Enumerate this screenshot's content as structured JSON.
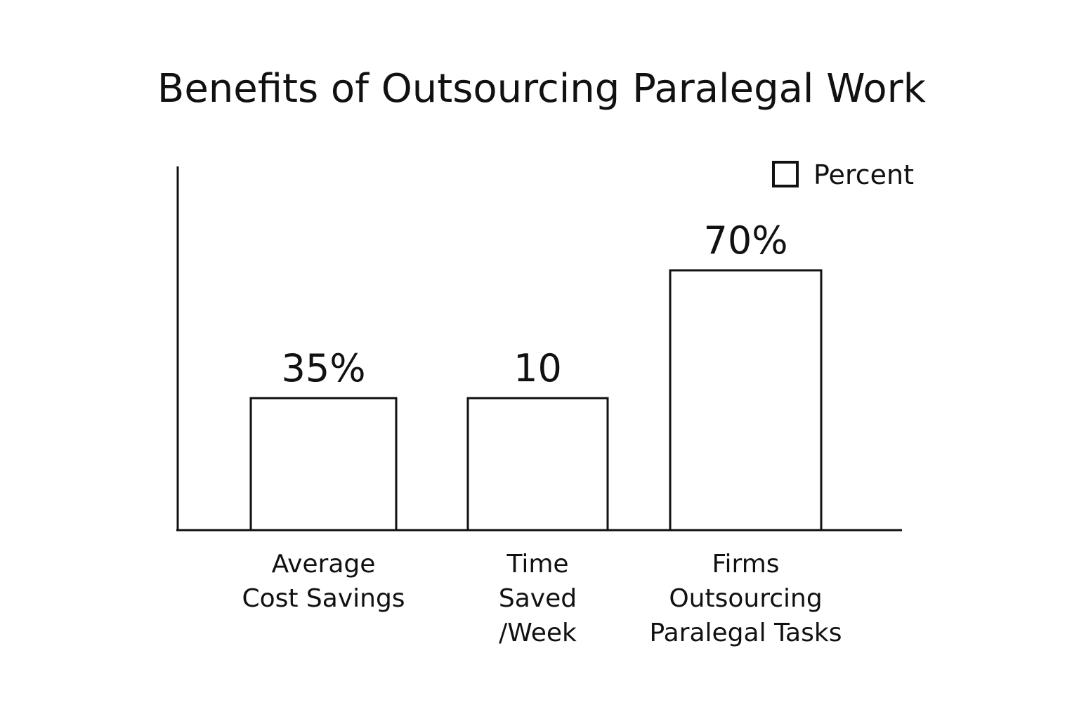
{
  "chart_data": {
    "type": "bar",
    "title": "Benefits of Outsourcing Paralegal Work",
    "categories": [
      [
        "Average",
        "Cost Savings"
      ],
      [
        "Time",
        "Saved",
        "/Week"
      ],
      [
        "Firms",
        "Outsourcing",
        "Paralegal Tasks"
      ]
    ],
    "series": [
      {
        "name": "Percent",
        "values": [
          35,
          10,
          70
        ]
      }
    ],
    "data_labels": [
      "35%",
      "10",
      "70%"
    ],
    "legend": {
      "position": "top-right",
      "entries": [
        "Percent"
      ]
    },
    "xlabel": "",
    "ylabel": "",
    "grid": false,
    "colors": {
      "bar_fill": "#ffffff",
      "bar_stroke": "#111111"
    }
  }
}
